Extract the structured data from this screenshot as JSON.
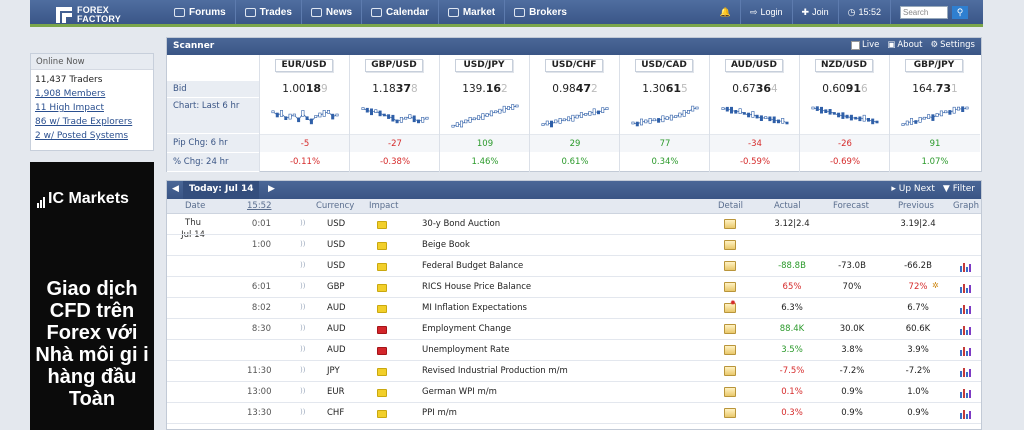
{
  "nav": {
    "logo_line1": "FOREX",
    "logo_line2": "FACTORY",
    "items": [
      {
        "label": "Forums",
        "icon": "chat-bubbles-icon"
      },
      {
        "label": "Trades",
        "icon": "bar-chart-icon"
      },
      {
        "label": "News",
        "icon": "globe-icon"
      },
      {
        "label": "Calendar",
        "icon": "calendar-icon"
      },
      {
        "label": "Market",
        "icon": "market-chart-icon"
      },
      {
        "label": "Brokers",
        "icon": "brokers-icon"
      }
    ],
    "login": "Login",
    "join": "Join",
    "time": "15:52",
    "search_placeholder": "Search",
    "colors": {
      "nav_bg": "#3a5687",
      "accent_green": "#7ba64a"
    }
  },
  "online": {
    "title": "Online Now",
    "items": [
      {
        "text": "11,437 Traders",
        "link": false
      },
      {
        "text": "1,908 Members",
        "link": true
      },
      {
        "text": "11 High Impact",
        "link": true
      },
      {
        "text": "86 w/ Trade Explorers",
        "link": true
      },
      {
        "text": "2 w/ Posted Systems",
        "link": true
      }
    ]
  },
  "ad": {
    "brand": "IC Markets",
    "text": "Giao dịch CFD trên Forex với Nhà môi gi i hàng đầu Toàn"
  },
  "scanner": {
    "title": "Scanner",
    "live": "Live",
    "about": "About",
    "settings": "Settings",
    "row_labels": [
      "Bid",
      "Chart: Last 6 hr",
      "Pip Chg: 6 hr",
      "% Chg: 24 hr"
    ],
    "pairs": [
      {
        "name": "EUR/USD",
        "bid_pre": "1.00",
        "bid_big": "18",
        "bid_last": "9",
        "pip": "-5",
        "pct": "-0.11%",
        "dir": "neg",
        "trend": [
          0.6,
          0.5,
          0.55,
          0.4,
          0.45,
          0.5,
          0.35,
          0.55,
          0.4,
          0.3,
          0.45,
          0.5,
          0.55,
          0.6,
          0.45,
          0.5
        ]
      },
      {
        "name": "GBP/USD",
        "bid_pre": "1.18",
        "bid_big": "37",
        "bid_last": "8",
        "pip": "-27",
        "pct": "-0.38%",
        "dir": "neg",
        "trend": [
          0.7,
          0.65,
          0.6,
          0.62,
          0.55,
          0.5,
          0.45,
          0.4,
          0.3,
          0.35,
          0.4,
          0.45,
          0.38,
          0.3,
          0.35,
          0.4
        ]
      },
      {
        "name": "USD/JPY",
        "bid_pre": "139.",
        "bid_big": "16",
        "bid_last": "2",
        "pip": "109",
        "pct": "1.46%",
        "dir": "pos",
        "trend": [
          0.15,
          0.2,
          0.22,
          0.3,
          0.35,
          0.38,
          0.42,
          0.45,
          0.5,
          0.55,
          0.6,
          0.62,
          0.68,
          0.72,
          0.75,
          0.78
        ]
      },
      {
        "name": "USD/CHF",
        "bid_pre": "0.98",
        "bid_big": "47",
        "bid_last": "2",
        "pip": "29",
        "pct": "0.61%",
        "dir": "pos",
        "trend": [
          0.2,
          0.25,
          0.22,
          0.3,
          0.32,
          0.35,
          0.38,
          0.4,
          0.45,
          0.5,
          0.52,
          0.55,
          0.6,
          0.58,
          0.65,
          0.7
        ]
      },
      {
        "name": "USD/CAD",
        "bid_pre": "1.30",
        "bid_big": "61",
        "bid_last": "5",
        "pip": "77",
        "pct": "0.34%",
        "dir": "pos",
        "trend": [
          0.25,
          0.22,
          0.28,
          0.3,
          0.32,
          0.35,
          0.33,
          0.38,
          0.4,
          0.42,
          0.45,
          0.5,
          0.55,
          0.6,
          0.7,
          0.72
        ]
      },
      {
        "name": "AUD/USD",
        "bid_pre": "0.67",
        "bid_big": "36",
        "bid_last": "4",
        "pip": "-34",
        "pct": "-0.59%",
        "dir": "neg",
        "trend": [
          0.7,
          0.68,
          0.65,
          0.6,
          0.62,
          0.55,
          0.5,
          0.52,
          0.45,
          0.4,
          0.42,
          0.38,
          0.35,
          0.3,
          0.32,
          0.25
        ]
      },
      {
        "name": "NZD/USD",
        "bid_pre": "0.60",
        "bid_big": "91",
        "bid_last": "6",
        "pip": "-26",
        "pct": "-0.69%",
        "dir": "neg",
        "trend": [
          0.72,
          0.7,
          0.65,
          0.62,
          0.6,
          0.55,
          0.5,
          0.48,
          0.45,
          0.42,
          0.4,
          0.38,
          0.4,
          0.35,
          0.3,
          0.28
        ]
      },
      {
        "name": "GBP/JPY",
        "bid_pre": "164.",
        "bid_big": "73",
        "bid_last": "1",
        "pip": "91",
        "pct": "1.07%",
        "dir": "pos",
        "trend": [
          0.2,
          0.25,
          0.3,
          0.28,
          0.35,
          0.4,
          0.45,
          0.42,
          0.5,
          0.55,
          0.6,
          0.58,
          0.65,
          0.7,
          0.68,
          0.72
        ]
      }
    ]
  },
  "calendar": {
    "today_label": "Today: Jul 14",
    "up_next": "Up Next",
    "filter": "Filter",
    "columns": {
      "date": "Date",
      "time": "15:52",
      "currency": "Currency",
      "impact": "Impact",
      "detail": "Detail",
      "actual": "Actual",
      "forecast": "Forecast",
      "previous": "Previous",
      "graph": "Graph"
    },
    "day_line1": "Thu",
    "day_line2": "Jul 14",
    "rows": [
      {
        "time": "0:01",
        "currency": "USD",
        "impact": "yellow",
        "event": "30-y Bond Auction",
        "detail_star": false,
        "actual": "3.12|2.4",
        "actual_dir": "",
        "forecast": "",
        "previous": "3.19|2.4",
        "prev_dir": "",
        "graph": false
      },
      {
        "time": "1:00",
        "currency": "USD",
        "impact": "yellow",
        "event": "Beige Book",
        "detail_star": false,
        "actual": "",
        "actual_dir": "",
        "forecast": "",
        "previous": "",
        "prev_dir": "",
        "graph": false
      },
      {
        "time": "",
        "currency": "USD",
        "impact": "yellow",
        "event": "Federal Budget Balance",
        "detail_star": false,
        "actual": "-88.8B",
        "actual_dir": "pos",
        "forecast": "-73.0B",
        "previous": "-66.2B",
        "prev_dir": "",
        "graph": true
      },
      {
        "time": "6:01",
        "currency": "GBP",
        "impact": "yellow",
        "event": "RICS House Price Balance",
        "detail_star": false,
        "actual": "65%",
        "actual_dir": "neg",
        "forecast": "70%",
        "previous": "72%",
        "prev_dir": "rev",
        "graph": true
      },
      {
        "time": "8:02",
        "currency": "AUD",
        "impact": "yellow",
        "event": "MI Inflation Expectations",
        "detail_star": true,
        "actual": "6.3%",
        "actual_dir": "",
        "forecast": "",
        "previous": "6.7%",
        "prev_dir": "",
        "graph": true
      },
      {
        "time": "8:30",
        "currency": "AUD",
        "impact": "red",
        "event": "Employment Change",
        "detail_star": false,
        "actual": "88.4K",
        "actual_dir": "pos",
        "forecast": "30.0K",
        "previous": "60.6K",
        "prev_dir": "",
        "graph": true
      },
      {
        "time": "",
        "currency": "AUD",
        "impact": "red",
        "event": "Unemployment Rate",
        "detail_star": false,
        "actual": "3.5%",
        "actual_dir": "pos",
        "forecast": "3.8%",
        "previous": "3.9%",
        "prev_dir": "",
        "graph": true
      },
      {
        "time": "11:30",
        "currency": "JPY",
        "impact": "yellow",
        "event": "Revised Industrial Production m/m",
        "detail_star": false,
        "actual": "-7.5%",
        "actual_dir": "neg",
        "forecast": "-7.2%",
        "previous": "-7.2%",
        "prev_dir": "",
        "graph": true
      },
      {
        "time": "13:00",
        "currency": "EUR",
        "impact": "yellow",
        "event": "German WPI m/m",
        "detail_star": false,
        "actual": "0.1%",
        "actual_dir": "neg",
        "forecast": "0.9%",
        "previous": "1.0%",
        "prev_dir": "",
        "graph": true
      },
      {
        "time": "13:30",
        "currency": "CHF",
        "impact": "yellow",
        "event": "PPI m/m",
        "detail_star": false,
        "actual": "0.3%",
        "actual_dir": "neg",
        "forecast": "0.9%",
        "previous": "0.9%",
        "prev_dir": "",
        "graph": true
      }
    ]
  }
}
